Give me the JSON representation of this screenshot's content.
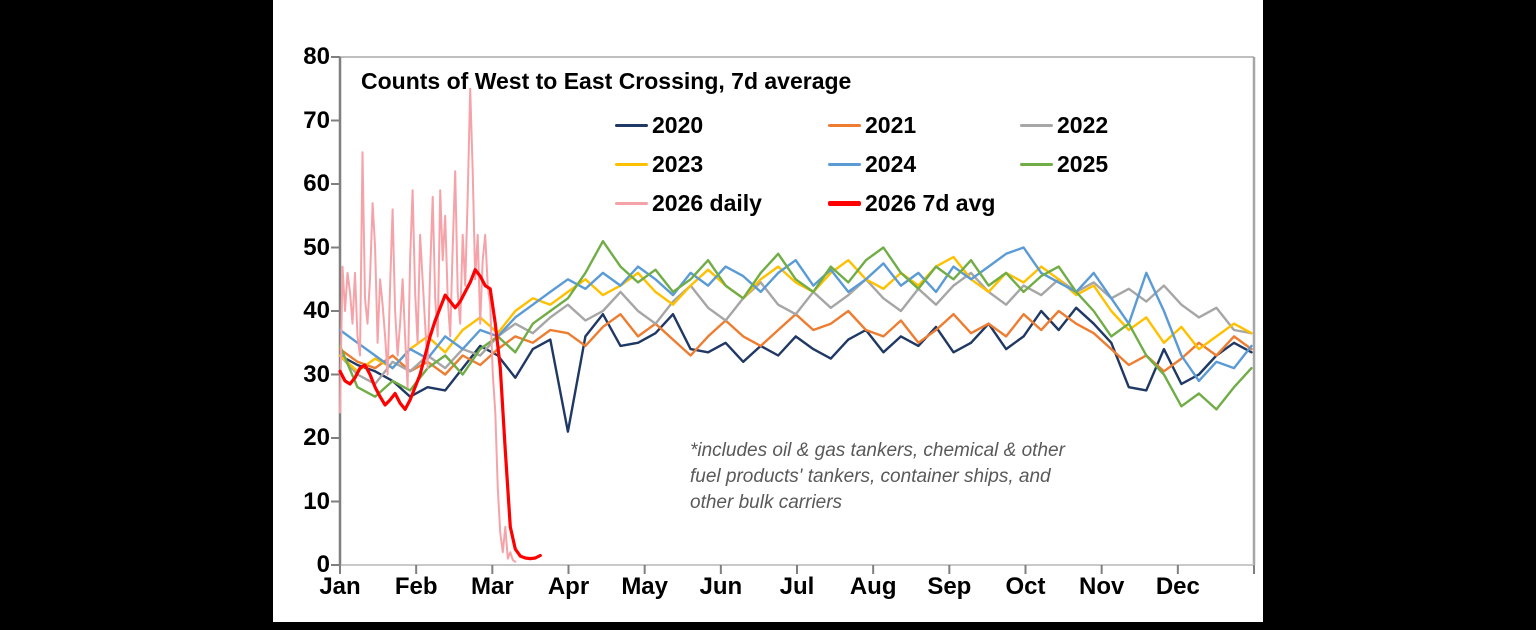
{
  "canvas": {
    "background": "#000000",
    "panel_background": "#ffffff"
  },
  "chart_data": {
    "type": "line",
    "title": "Counts of West to East Crossing, 7d average",
    "annotation_lines": [
      "*includes oil & gas tankers, chemical & other",
      "fuel products' tankers, container ships, and",
      "other bulk carriers"
    ],
    "x_axis": {
      "tick_labels": [
        "Jan",
        "Feb",
        "Mar",
        "Apr",
        "May",
        "Jun",
        "Jul",
        "Aug",
        "Sep",
        "Oct",
        "Nov",
        "Dec"
      ],
      "days_per_year": 365,
      "note": "ticks at month starts, labels centered on ticks"
    },
    "y_axis": {
      "min": 0,
      "max": 80,
      "ticks": [
        0,
        10,
        20,
        30,
        40,
        50,
        60,
        70,
        80
      ]
    },
    "grid": false,
    "legend_layout": "3 columns, top center inside plot",
    "series": [
      {
        "name": "2020",
        "color": "#1f3864",
        "stroke_width": 2.4,
        "step_days": 7,
        "values": [
          33,
          31.5,
          30.5,
          29,
          26.5,
          28,
          27.5,
          31,
          34.5,
          33,
          29.5,
          34,
          35.5,
          21,
          36,
          39.5,
          34.5,
          35,
          36.5,
          39.5,
          34,
          33.5,
          35,
          32,
          34.5,
          33,
          36,
          34,
          32.5,
          35.5,
          37,
          33.5,
          36,
          34.5,
          37.5,
          33.5,
          35,
          38,
          34,
          36,
          40,
          37,
          40.5,
          38,
          35,
          28,
          27.5,
          34,
          28.5,
          30,
          33,
          35,
          33.5
        ]
      },
      {
        "name": "2021",
        "color": "#ed7d31",
        "stroke_width": 2.4,
        "step_days": 7,
        "values": [
          34,
          32,
          31,
          33,
          30.5,
          32,
          30,
          33,
          31.5,
          34,
          36,
          35,
          37,
          36.5,
          34.5,
          37.5,
          39.5,
          36,
          38,
          35.5,
          33,
          36,
          38.5,
          36,
          34.5,
          37,
          39.5,
          37,
          38,
          40,
          37,
          36,
          38.5,
          35,
          37,
          39.5,
          36.5,
          38,
          36,
          39.5,
          37,
          40,
          38,
          36.5,
          34,
          31.5,
          33,
          30.5,
          32.5,
          35,
          33,
          36,
          34
        ]
      },
      {
        "name": "2022",
        "color": "#a6a6a6",
        "stroke_width": 2.4,
        "step_days": 7,
        "values": [
          33,
          30,
          28.5,
          32,
          30.5,
          33,
          31,
          34,
          33,
          36,
          38,
          36.5,
          39,
          41,
          38.5,
          40,
          43,
          40,
          38,
          41.5,
          44,
          40.5,
          38.5,
          42,
          44.5,
          41,
          39.5,
          43,
          40.5,
          42.5,
          45,
          42,
          40,
          43.5,
          41,
          44,
          46,
          43,
          41,
          44,
          42.5,
          45,
          43,
          44.5,
          42,
          43.5,
          41.5,
          44,
          41,
          39,
          40.5,
          37,
          36.5
        ]
      },
      {
        "name": "2023",
        "color": "#ffc000",
        "stroke_width": 2.4,
        "step_days": 7,
        "values": [
          33,
          30.5,
          32.5,
          31,
          34,
          36,
          33.5,
          37,
          39,
          36.5,
          40,
          42,
          41,
          43,
          45,
          42.5,
          44,
          46,
          43,
          41,
          44,
          46.5,
          44,
          42,
          45,
          47,
          44.5,
          43,
          46,
          48,
          45,
          43.5,
          46,
          44,
          47,
          48.5,
          45,
          43,
          46,
          44.5,
          47,
          45,
          42.5,
          44,
          40,
          37,
          39,
          35,
          37.5,
          34,
          36,
          38,
          36.5
        ]
      },
      {
        "name": "2024",
        "color": "#5b9bd5",
        "stroke_width": 2.4,
        "step_days": 7,
        "values": [
          37,
          35,
          33,
          31,
          34,
          32.5,
          36,
          34,
          37,
          36,
          39,
          41,
          43,
          45,
          43.5,
          46,
          44,
          47,
          45,
          42.5,
          46,
          44,
          47,
          45.5,
          43,
          46,
          48,
          44,
          46.5,
          43,
          45,
          47.5,
          44,
          46,
          43,
          47,
          45,
          47,
          49,
          50,
          46,
          44.5,
          43,
          46,
          42,
          38,
          46,
          40,
          33,
          29,
          32,
          31,
          34.5
        ]
      },
      {
        "name": "2025",
        "color": "#70ad47",
        "stroke_width": 2.4,
        "step_days": 7,
        "values": [
          34.5,
          28,
          26.5,
          29,
          27.5,
          31,
          33,
          30,
          34,
          36,
          33.5,
          38,
          40,
          42,
          46,
          51,
          47,
          44.5,
          46.5,
          43,
          45,
          48,
          44,
          42,
          46,
          49,
          45,
          43,
          47,
          44.5,
          48,
          50,
          46,
          43.5,
          47,
          45,
          48,
          44,
          46,
          43,
          45.5,
          47,
          43,
          40,
          36,
          38,
          33,
          30,
          25,
          27,
          24.5,
          28,
          31
        ]
      },
      {
        "name": "2026 daily",
        "color": "#f5a3a8",
        "stroke_width": 2,
        "step_days": 1,
        "values": [
          24,
          47,
          40,
          46,
          43,
          38,
          46,
          36,
          33,
          65,
          42,
          38,
          45,
          57,
          50,
          35,
          45,
          41,
          36,
          30,
          44,
          56,
          40,
          33,
          38,
          45,
          36,
          28,
          48,
          59,
          43,
          35,
          52,
          45,
          38,
          31,
          46,
          58,
          42,
          36,
          59,
          48,
          55,
          42,
          36,
          50,
          62,
          43,
          38,
          52,
          44,
          58,
          75,
          62,
          45,
          52,
          38,
          48,
          52,
          44,
          41,
          30,
          24,
          12,
          5,
          2,
          6,
          1,
          2,
          0.8,
          0.5
        ]
      },
      {
        "name": "2026 7d avg",
        "color": "#fe0000",
        "stroke_width": 3.2,
        "step_days": 2,
        "values": [
          30.5,
          29,
          28.5,
          29.5,
          31,
          31.5,
          30,
          28,
          26.5,
          25.2,
          26,
          27,
          25.5,
          24.5,
          26,
          28,
          30,
          33,
          36,
          38.5,
          40.5,
          42.5,
          41.5,
          40.5,
          41.5,
          43,
          44.5,
          46.5,
          45.5,
          44,
          43.5,
          38,
          31,
          18,
          6,
          2.5,
          1.4,
          1.1,
          1,
          1.1,
          1.5
        ]
      }
    ]
  }
}
